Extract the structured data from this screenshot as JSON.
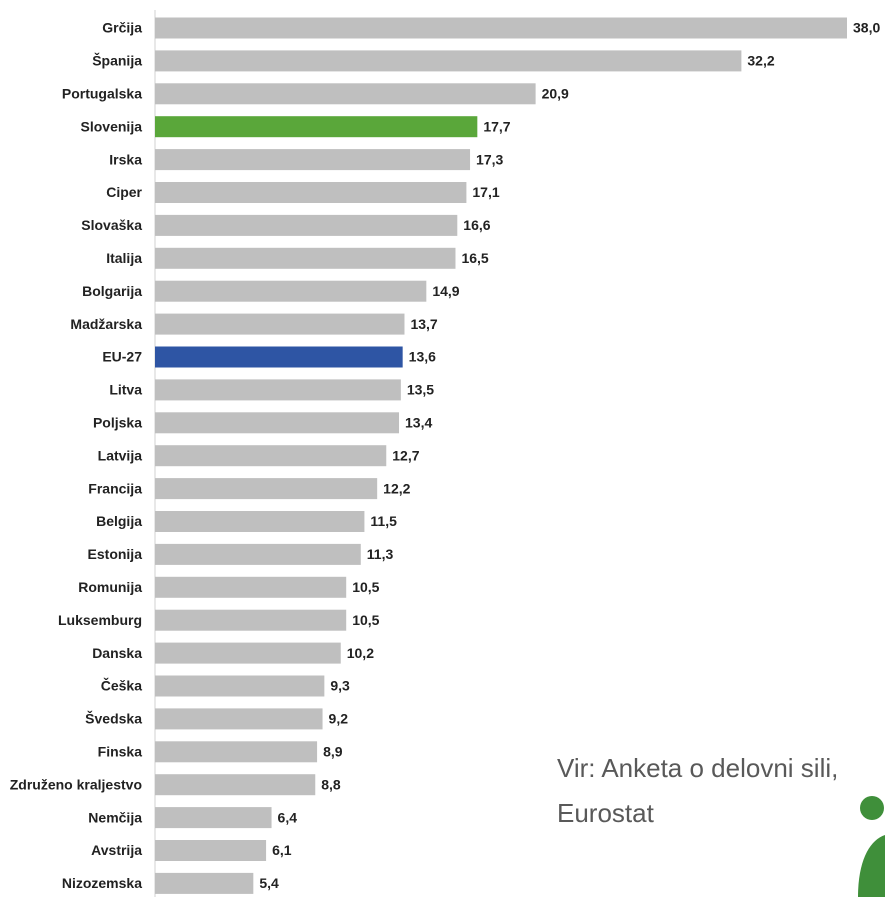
{
  "chart_data": {
    "type": "bar",
    "orientation": "horizontal",
    "categories": [
      "Grčija",
      "Španija",
      "Portugalska",
      "Slovenija",
      "Irska",
      "Ciper",
      "Slovaška",
      "Italija",
      "Bolgarija",
      "Madžarska",
      "EU-27",
      "Litva",
      "Poljska",
      "Latvija",
      "Francija",
      "Belgija",
      "Estonija",
      "Romunija",
      "Luksemburg",
      "Danska",
      "Češka",
      "Švedska",
      "Finska",
      "Združeno kraljestvo",
      "Nemčija",
      "Avstrija",
      "Nizozemska"
    ],
    "values": [
      38.0,
      32.2,
      20.9,
      17.7,
      17.3,
      17.1,
      16.6,
      16.5,
      14.9,
      13.7,
      13.6,
      13.5,
      13.4,
      12.7,
      12.2,
      11.5,
      11.3,
      10.5,
      10.5,
      10.2,
      9.3,
      9.2,
      8.9,
      8.8,
      6.4,
      6.1,
      5.4
    ],
    "value_labels": [
      "38,0",
      "32,2",
      "20,9",
      "17,7",
      "17,3",
      "17,1",
      "16,6",
      "16,5",
      "14,9",
      "13,7",
      "13,6",
      "13,5",
      "13,4",
      "12,7",
      "12,2",
      "11,5",
      "11,3",
      "10,5",
      "10,5",
      "10,2",
      "9,3",
      "9,2",
      "8,9",
      "8,8",
      "6,4",
      "6,1",
      "5,4"
    ],
    "colors": [
      "#bfbfbf",
      "#bfbfbf",
      "#bfbfbf",
      "#5aa73a",
      "#bfbfbf",
      "#bfbfbf",
      "#bfbfbf",
      "#bfbfbf",
      "#bfbfbf",
      "#bfbfbf",
      "#2e55a4",
      "#bfbfbf",
      "#bfbfbf",
      "#bfbfbf",
      "#bfbfbf",
      "#bfbfbf",
      "#bfbfbf",
      "#bfbfbf",
      "#bfbfbf",
      "#bfbfbf",
      "#bfbfbf",
      "#bfbfbf",
      "#bfbfbf",
      "#bfbfbf",
      "#bfbfbf",
      "#bfbfbf",
      "#bfbfbf"
    ],
    "annotation": [
      "Vir: Anketa o delovni sili,",
      "Eurostat"
    ]
  }
}
